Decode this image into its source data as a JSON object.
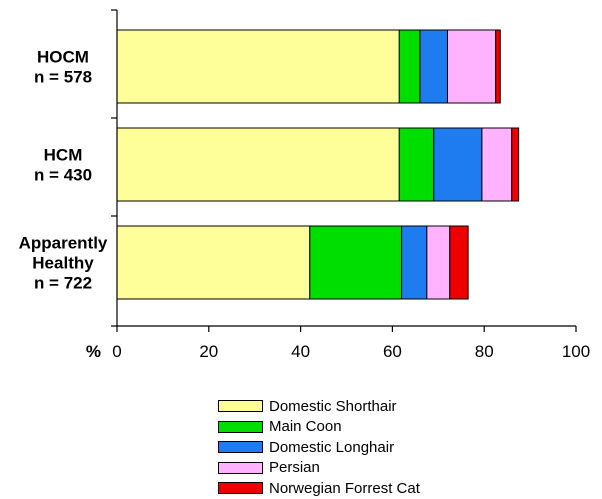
{
  "chart_data": {
    "type": "bar",
    "orientation": "horizontal",
    "stacked": true,
    "categories": [
      [
        "HOCM",
        "n = 578"
      ],
      [
        "HCM",
        "n = 430"
      ],
      [
        "Apparently",
        "Healthy",
        "n = 722"
      ]
    ],
    "series": [
      {
        "name": "Domestic Shorthair",
        "color": "#ffff99",
        "values": [
          61.5,
          61.5,
          42
        ]
      },
      {
        "name": "Main Coon",
        "color": "#00dd00",
        "values": [
          4.5,
          7.5,
          20
        ]
      },
      {
        "name": "Domestic Longhair",
        "color": "#1e7cf0",
        "values": [
          6,
          10.5,
          5.5
        ]
      },
      {
        "name": "Persian",
        "color": "#ffb3ff",
        "values": [
          10.5,
          6.5,
          5
        ]
      },
      {
        "name": "Norwegian Forrest Cat",
        "color": "#ee0000",
        "values": [
          1,
          1.5,
          4
        ]
      }
    ],
    "xlim": [
      0,
      100
    ],
    "xticks": [
      "0",
      "20",
      "40",
      "60",
      "80",
      "100"
    ],
    "x_unit_label": "%",
    "grid": false,
    "legend_position": "bottom"
  }
}
